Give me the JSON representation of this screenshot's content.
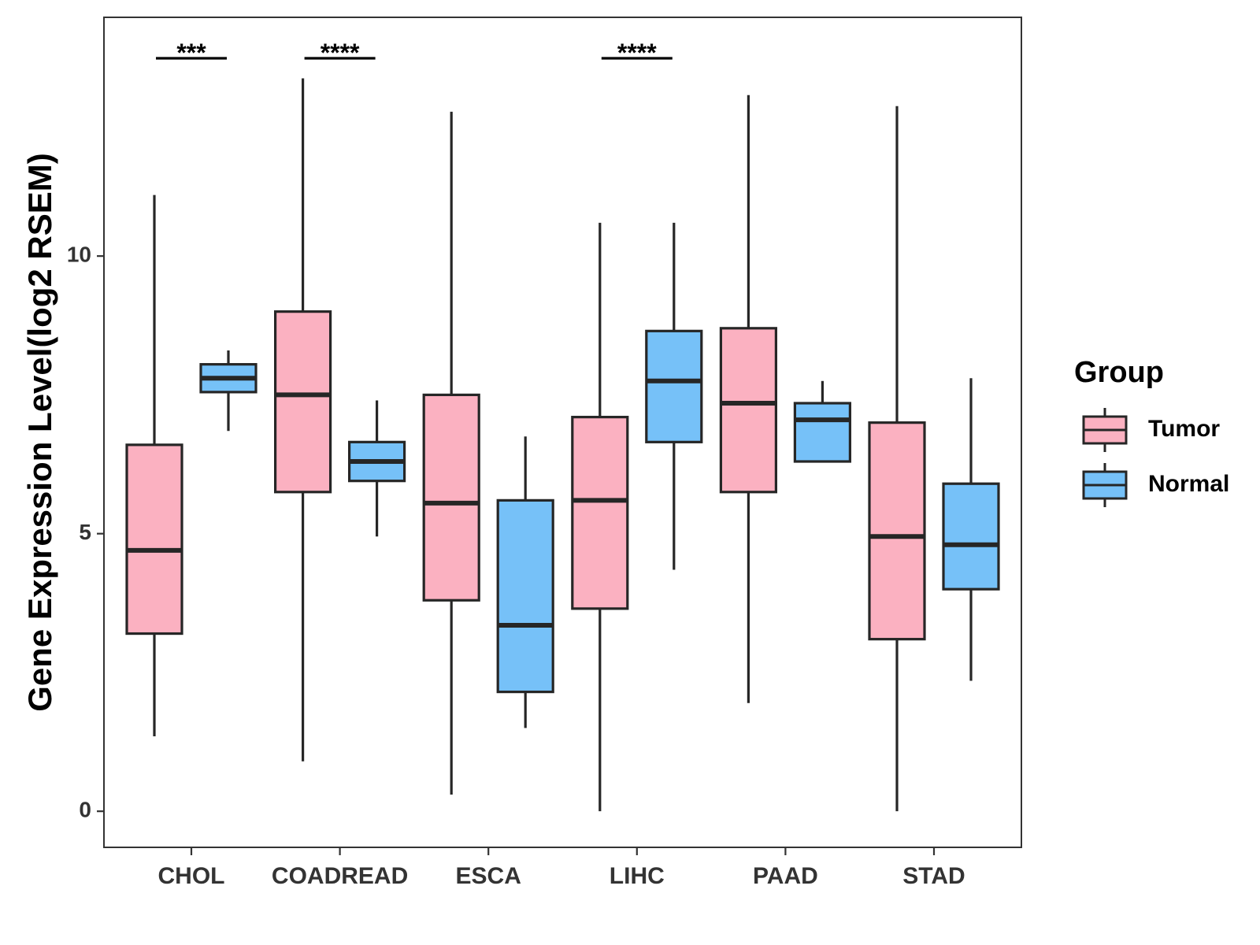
{
  "chart_data": {
    "type": "boxplot",
    "title": "",
    "xlabel": "",
    "ylabel": "Gene Expression Level(log2 RSEM)",
    "ylim": [
      -0.65,
      14.3
    ],
    "yticks": [
      0,
      5,
      10
    ],
    "ytick_labels": [
      "0",
      "5",
      "10"
    ],
    "grid": false,
    "categories": [
      "CHOL",
      "COADREAD",
      "ESCA",
      "LIHC",
      "PAAD",
      "STAD"
    ],
    "legend": {
      "title": "Group",
      "position": "right",
      "entries": [
        "Tumor",
        "Normal"
      ]
    },
    "series": [
      {
        "name": "Tumor",
        "color": "#FBB1C1",
        "boxes": [
          {
            "whisker_low": 1.35,
            "q1": 3.2,
            "median": 4.7,
            "q3": 6.6,
            "whisker_high": 11.1
          },
          {
            "whisker_low": 0.9,
            "q1": 5.75,
            "median": 7.5,
            "q3": 9.0,
            "whisker_high": 13.2
          },
          {
            "whisker_low": 0.3,
            "q1": 3.8,
            "median": 5.55,
            "q3": 7.5,
            "whisker_high": 12.6
          },
          {
            "whisker_low": 0.0,
            "q1": 3.65,
            "median": 5.6,
            "q3": 7.1,
            "whisker_high": 10.6
          },
          {
            "whisker_low": 1.95,
            "q1": 5.75,
            "median": 7.35,
            "q3": 8.7,
            "whisker_high": 12.9
          },
          {
            "whisker_low": 0.0,
            "q1": 3.1,
            "median": 4.95,
            "q3": 7.0,
            "whisker_high": 12.7
          }
        ]
      },
      {
        "name": "Normal",
        "color": "#76C1F8",
        "boxes": [
          {
            "whisker_low": 6.85,
            "q1": 7.55,
            "median": 7.8,
            "q3": 8.05,
            "whisker_high": 8.3
          },
          {
            "whisker_low": 4.95,
            "q1": 5.95,
            "median": 6.3,
            "q3": 6.65,
            "whisker_high": 7.4
          },
          {
            "whisker_low": 1.5,
            "q1": 2.15,
            "median": 3.35,
            "q3": 5.6,
            "whisker_high": 6.75
          },
          {
            "whisker_low": 4.35,
            "q1": 6.65,
            "median": 7.75,
            "q3": 8.65,
            "whisker_high": 10.6
          },
          {
            "whisker_low": null,
            "q1": 6.3,
            "median": 7.05,
            "q3": 7.35,
            "whisker_high": 7.75
          },
          {
            "whisker_low": 2.35,
            "q1": 4.0,
            "median": 4.8,
            "q3": 5.9,
            "whisker_high": 7.8
          }
        ]
      }
    ],
    "annotations": [
      {
        "category": "CHOL",
        "label": "***"
      },
      {
        "category": "COADREAD",
        "label": "****"
      },
      {
        "category": "LIHC",
        "label": "****"
      }
    ]
  }
}
